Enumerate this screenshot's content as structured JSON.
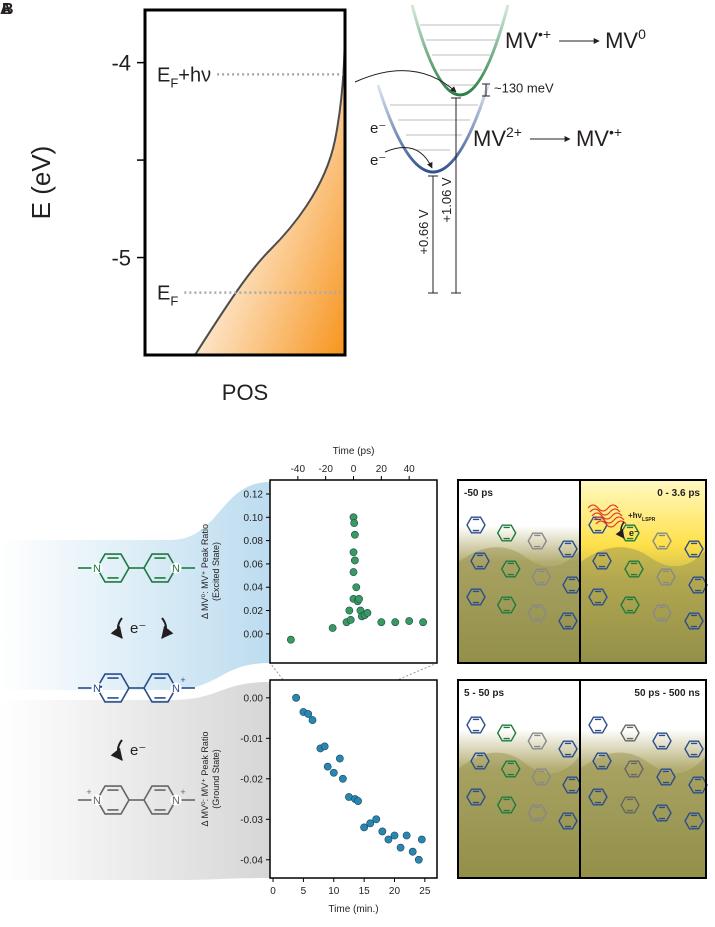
{
  "panel_labels": [
    "A",
    "B"
  ],
  "chart_data": [
    {
      "type": "line",
      "ylabel": "E (eV)",
      "xlabel": "POS",
      "ylim": [
        -5.5,
        -3.73
      ],
      "yticks": [
        -4,
        -5
      ],
      "minor_yticks": [
        -4.5
      ],
      "levels": [
        {
          "text": "E",
          "sub": "F",
          "suffix": "+hν",
          "value": -4.06
        },
        {
          "text": "E",
          "sub": "F",
          "value": -5.18
        }
      ],
      "color": "#f7941d"
    },
    {
      "type": "scatter",
      "xlabel": "Time (ps)",
      "ylabel": "Δ MV⁰: MV⁺ Peak Ratio",
      "ylabel_note": "(Excited State)",
      "x": [
        -45,
        -15,
        -5,
        -3,
        -2,
        0,
        0,
        0.5,
        1,
        0,
        1,
        0,
        2,
        3,
        4,
        5,
        6,
        8,
        10,
        20,
        30,
        40,
        50
      ],
      "values": [
        -0.005,
        0.005,
        0.01,
        0.02,
        0.012,
        0.03,
        0.1,
        0.095,
        0.085,
        0.07,
        0.063,
        0.053,
        0.04,
        0.028,
        0.03,
        0.02,
        0.015,
        0.016,
        0.018,
        0.01,
        0.01,
        0.011,
        0.01
      ],
      "color": "#3a9a5b",
      "xlim": [
        -60,
        60
      ],
      "xticks": [
        -40,
        -20,
        0,
        20,
        40
      ],
      "ylim": [
        -0.025,
        0.132
      ],
      "yticks": [
        {
          "value": 0,
          "label": "0.00"
        },
        {
          "value": 0.02,
          "label": "0.02"
        },
        {
          "value": 0.04,
          "label": "0.04"
        },
        {
          "value": 0.06,
          "label": "0.06"
        },
        {
          "value": 0.08,
          "label": "0.08"
        },
        {
          "value": 0.1,
          "label": "0.10"
        },
        {
          "value": 0.12,
          "label": "0.12"
        }
      ],
      "x_axis": "top"
    },
    {
      "type": "scatter",
      "xlabel": "Time (min.)",
      "ylabel": "Δ MV⁰: MV⁺ Peak Ratio",
      "ylabel_note": "(Ground State)",
      "x": [
        3.8,
        5,
        5.8,
        6.5,
        7.8,
        8.5,
        9,
        10,
        11,
        11.5,
        12.5,
        13.5,
        14,
        15,
        16,
        17,
        18,
        19,
        20,
        21,
        22,
        23,
        24,
        24.5
      ],
      "values": [
        0,
        -0.0035,
        -0.004,
        -0.0055,
        -0.0125,
        -0.012,
        -0.017,
        -0.0185,
        -0.015,
        -0.02,
        -0.0245,
        -0.025,
        -0.0255,
        -0.032,
        -0.031,
        -0.03,
        -0.033,
        -0.035,
        -0.034,
        -0.037,
        -0.034,
        -0.038,
        -0.04,
        -0.035
      ],
      "color": "#2a86b0",
      "xlim": [
        -0.5,
        27
      ],
      "xticks": [
        0,
        5,
        10,
        15,
        20,
        25
      ],
      "ylim": [
        -0.0445,
        0.0044
      ],
      "yticks": [
        {
          "value": 0,
          "label": "0.00"
        },
        {
          "value": -0.01,
          "label": "-0.01"
        },
        {
          "value": -0.02,
          "label": "-0.02"
        },
        {
          "value": -0.03,
          "label": "-0.03"
        },
        {
          "value": -0.04,
          "label": "-0.04"
        }
      ],
      "x_axis": "bottom"
    }
  ],
  "diagram": {
    "reactions": [
      {
        "left": [
          "MV",
          "•+"
        ],
        "right": [
          "MV",
          "0"
        ]
      },
      {
        "left": [
          "MV",
          "2+"
        ],
        "right": [
          "MV",
          "•+"
        ]
      }
    ],
    "splitting": "~130 meV",
    "potentials": [
      "+0.66 V",
      "+1.06 V"
    ],
    "electron": "e⁻"
  },
  "molecules": {
    "atom": "N",
    "charge": "+",
    "radical": "•",
    "electron": "e⁻"
  },
  "snapshots": [
    {
      "label": "-50 ps"
    },
    {
      "label": "0 - 3.6 ps"
    },
    {
      "label": "5 - 50 ps"
    },
    {
      "label": "50 ps - 500 ns"
    }
  ],
  "excitation": {
    "text": "+hν",
    "sub": "LSPR",
    "electron": "e⁻"
  }
}
